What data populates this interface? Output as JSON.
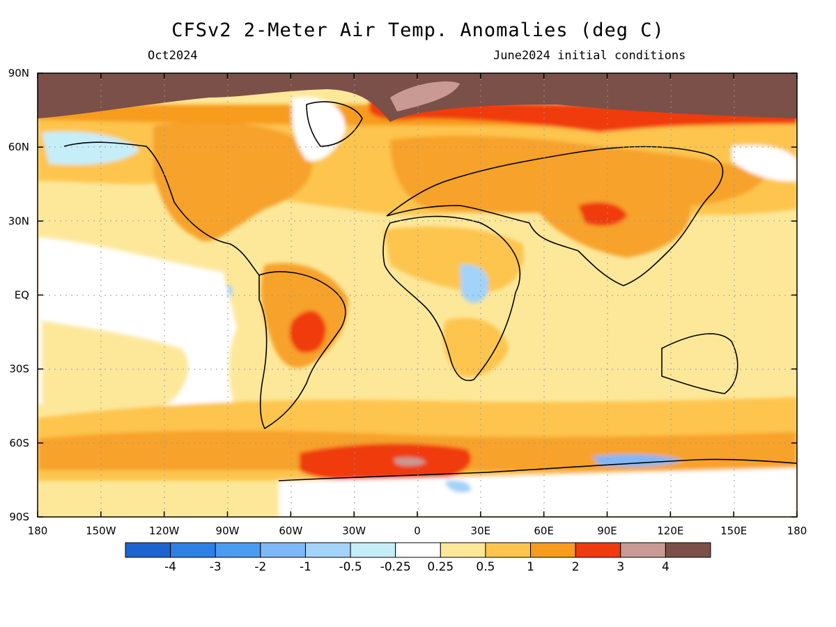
{
  "title": "CFSv2 2-Meter Air Temp. Anomalies (deg C)",
  "subtitle_left": "Oct2024",
  "subtitle_right": "June2024 initial conditions",
  "lat_ticks": [
    "90N",
    "60N",
    "30N",
    "EQ",
    "30S",
    "60S",
    "90S"
  ],
  "lon_ticks": [
    "180",
    "150W",
    "120W",
    "90W",
    "60W",
    "30W",
    "0",
    "30E",
    "60E",
    "90E",
    "120E",
    "150E",
    "180"
  ],
  "colorbar": {
    "colors": [
      "#1e64d0",
      "#2e7fe6",
      "#4b9bf2",
      "#7fb8f6",
      "#a3d3f8",
      "#c6eef9",
      "#ffffff",
      "#fde89a",
      "#fdc54e",
      "#f79c1e",
      "#f03a10",
      "#c99a93",
      "#7b5048"
    ],
    "labels": [
      "-4",
      "-3",
      "-2",
      "-1",
      "-0.5",
      "-0.25",
      "0.25",
      "0.5",
      "1",
      "2",
      "3",
      "4"
    ]
  }
}
